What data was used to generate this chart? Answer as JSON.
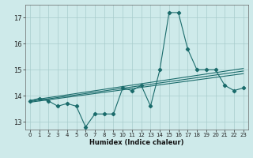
{
  "title": "",
  "xlabel": "Humidex (Indice chaleur)",
  "ylabel": "",
  "bg_color": "#ceeaea",
  "line_color": "#1a6b6b",
  "grid_color": "#a8cccc",
  "ylim": [
    12.7,
    17.5
  ],
  "xlim": [
    -0.5,
    23.5
  ],
  "yticks": [
    13,
    14,
    15,
    16,
    17
  ],
  "xticks": [
    0,
    1,
    2,
    3,
    4,
    5,
    6,
    7,
    8,
    9,
    10,
    11,
    12,
    13,
    14,
    15,
    16,
    17,
    18,
    19,
    20,
    21,
    22,
    23
  ],
  "main_x": [
    0,
    1,
    2,
    3,
    4,
    5,
    6,
    7,
    8,
    9,
    10,
    11,
    12,
    13,
    14,
    15,
    16,
    17,
    18,
    19,
    20,
    21,
    22,
    23
  ],
  "main_y": [
    13.8,
    13.9,
    13.8,
    13.6,
    13.7,
    13.6,
    12.8,
    13.3,
    13.3,
    13.3,
    14.3,
    14.2,
    14.4,
    13.6,
    15.0,
    17.2,
    17.2,
    15.8,
    15.0,
    15.0,
    15.0,
    14.4,
    14.2,
    14.3
  ],
  "trend1_x": [
    0,
    23
  ],
  "trend1_y": [
    13.75,
    14.85
  ],
  "trend2_x": [
    0,
    23
  ],
  "trend2_y": [
    13.78,
    14.95
  ],
  "trend3_x": [
    0,
    23
  ],
  "trend3_y": [
    13.82,
    15.05
  ],
  "marker_size": 2.2,
  "line_width": 0.8
}
